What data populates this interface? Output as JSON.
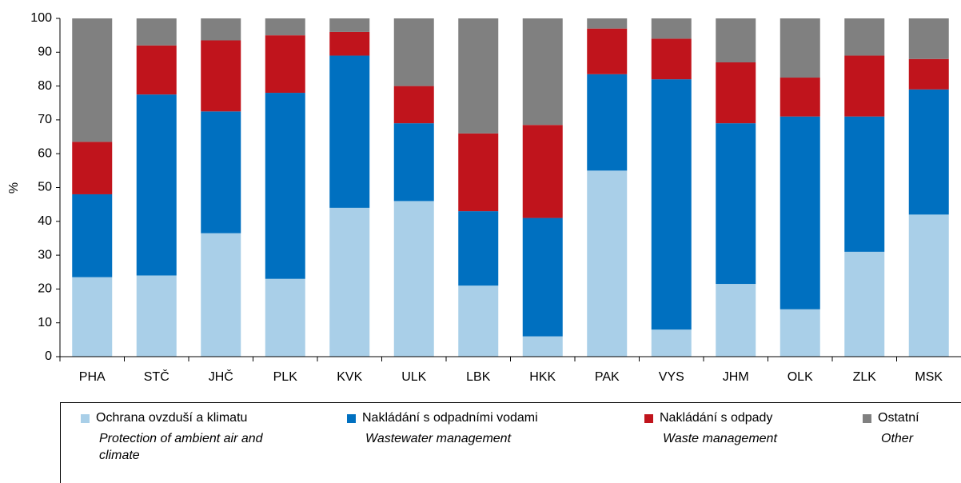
{
  "chart_data": {
    "type": "stacked_bar",
    "ylabel": "%",
    "categories": [
      "PHA",
      "STČ",
      "JHČ",
      "PLK",
      "KVK",
      "ULK",
      "LBK",
      "HKK",
      "PAK",
      "VYS",
      "JHM",
      "OLK",
      "ZLK",
      "MSK"
    ],
    "series": [
      {
        "name": "Ochrana ovzduší a klimatu",
        "name_en": "Protection of ambient air and climate",
        "color": "#a9cfe8",
        "values": [
          23.5,
          24,
          36.5,
          23,
          44,
          46,
          21,
          6,
          55,
          8,
          21.5,
          14,
          31,
          42
        ]
      },
      {
        "name": "Nakládání s odpadními vodami",
        "name_en": "Wastewater management",
        "color": "#0070c0",
        "values": [
          24.5,
          53.5,
          36,
          55,
          45,
          23,
          22,
          35,
          28.5,
          74,
          47.5,
          57,
          40,
          37
        ]
      },
      {
        "name": "Nakládání s odpady",
        "name_en": "Waste management",
        "color": "#c0141c",
        "values": [
          15.5,
          14.5,
          21,
          17,
          7,
          11,
          23,
          27.5,
          13.5,
          12,
          18,
          11.5,
          18,
          9
        ]
      },
      {
        "name": "Ostatní",
        "name_en": "Other",
        "color": "#808080",
        "values": [
          36.5,
          8,
          6.5,
          5,
          4,
          20,
          34,
          31.5,
          3,
          6,
          13,
          17.5,
          11,
          12
        ]
      }
    ],
    "ylim": [
      0,
      100
    ],
    "yticks": [
      0,
      10,
      20,
      30,
      40,
      50,
      60,
      70,
      80,
      90,
      100
    ],
    "grid": false
  }
}
